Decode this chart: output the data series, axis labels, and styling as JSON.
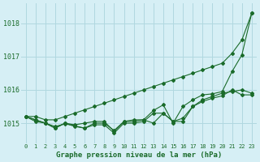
{
  "title": "Graphe pression niveau de la mer (hPa)",
  "bg_color": "#d6eff5",
  "grid_color": "#b0d8e0",
  "line_color": "#1a6b2a",
  "x_labels": [
    "0",
    "1",
    "2",
    "3",
    "4",
    "5",
    "6",
    "7",
    "8",
    "9",
    "10",
    "11",
    "12",
    "13",
    "14",
    "15",
    "16",
    "17",
    "18",
    "19",
    "20",
    "21",
    "22",
    "23"
  ],
  "ylim": [
    1014.4,
    1018.6
  ],
  "yticks": [
    1015,
    1016,
    1017,
    1018
  ],
  "series": [
    [
      1015.2,
      1015.2,
      1015.1,
      1015.1,
      1015.2,
      1015.3,
      1015.4,
      1015.5,
      1015.6,
      1015.7,
      1015.8,
      1015.9,
      1016.0,
      1016.1,
      1016.2,
      1016.3,
      1016.4,
      1016.5,
      1016.6,
      1016.7,
      1016.8,
      1017.1,
      1017.5,
      1018.3
    ],
    [
      1015.2,
      1015.1,
      1015.0,
      1014.85,
      1015.0,
      1014.95,
      1015.0,
      1015.05,
      1015.05,
      1014.75,
      1015.05,
      1015.05,
      1015.1,
      1015.0,
      1015.3,
      1015.05,
      1015.15,
      1015.5,
      1015.7,
      1015.8,
      1015.9,
      1015.95,
      1016.0,
      1015.9
    ],
    [
      1015.2,
      1015.1,
      1015.0,
      1014.85,
      1015.0,
      1014.9,
      1014.85,
      1014.95,
      1014.95,
      1014.7,
      1015.0,
      1015.0,
      1015.05,
      1015.3,
      1015.3,
      1015.05,
      1015.05,
      1015.5,
      1015.65,
      1015.75,
      1015.82,
      1016.0,
      1015.85,
      1015.85
    ],
    [
      1015.2,
      1015.05,
      1015.0,
      1014.9,
      1014.98,
      1014.92,
      1014.85,
      1015.0,
      1015.0,
      1014.78,
      1015.05,
      1015.1,
      1015.1,
      1015.38,
      1015.55,
      1015.0,
      1015.5,
      1015.7,
      1015.85,
      1015.88,
      1015.95,
      1016.55,
      1017.05,
      1018.3
    ]
  ]
}
